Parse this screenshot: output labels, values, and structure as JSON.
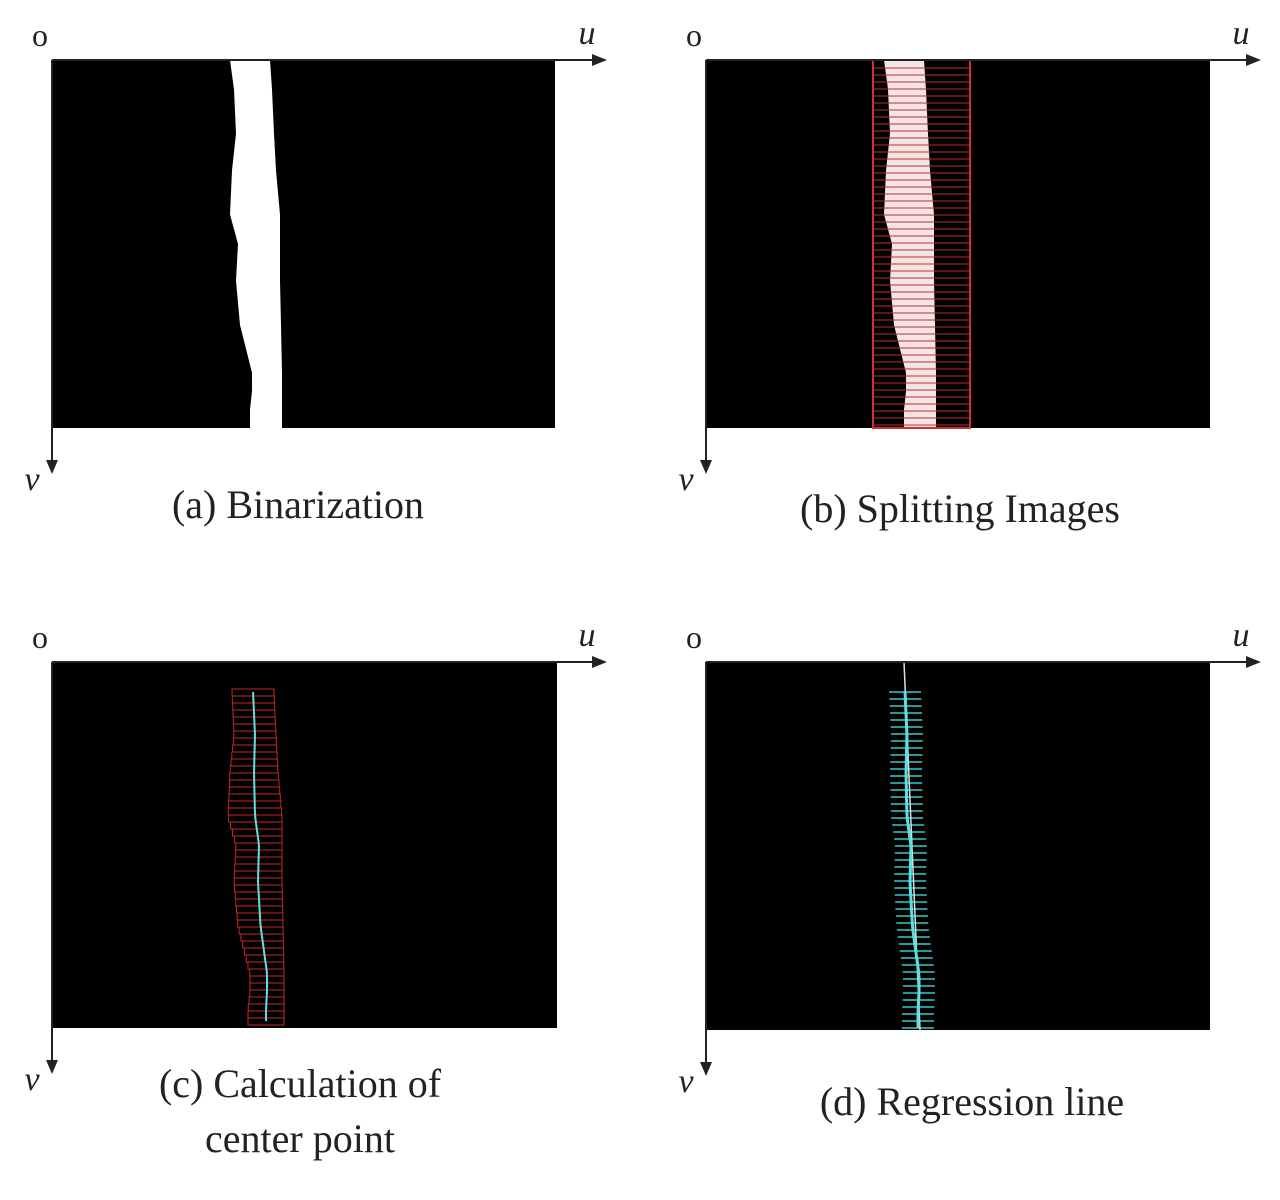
{
  "panels": [
    {
      "origin": "o",
      "u_axis": "u",
      "v_axis": "v",
      "caption": [
        "(a) Binarization"
      ]
    },
    {
      "origin": "o",
      "u_axis": "u",
      "v_axis": "v",
      "caption": [
        "(b) Splitting Images"
      ]
    },
    {
      "origin": "o",
      "u_axis": "u",
      "v_axis": "v",
      "caption": [
        "(c) Calculation of",
        "center point"
      ]
    },
    {
      "origin": "o",
      "u_axis": "u",
      "v_axis": "v",
      "caption": [
        "(d)  Regression line"
      ]
    }
  ]
}
